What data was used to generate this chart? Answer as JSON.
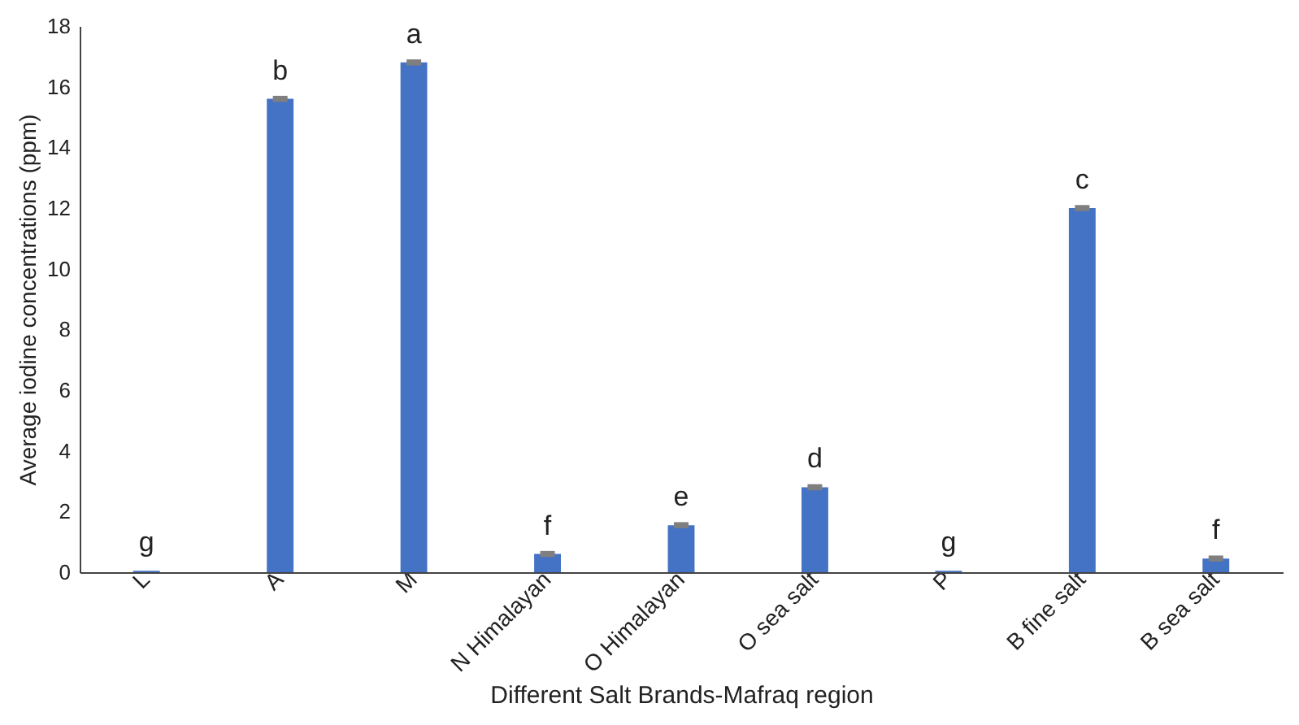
{
  "chart_data": {
    "type": "bar",
    "xlabel": "Different Salt Brands-Mafraq region",
    "ylabel": "Average iodine concentrations (ppm)",
    "categories": [
      "L",
      "A",
      "M",
      "N Himalayan",
      "O Himalayan",
      "O sea salt",
      "P",
      "B fine salt",
      "B sea salt"
    ],
    "values": [
      0.05,
      15.6,
      16.8,
      0.6,
      1.55,
      2.8,
      0.05,
      12.0,
      0.45
    ],
    "errors": [
      null,
      0.1,
      0.1,
      0.1,
      0.1,
      0.1,
      null,
      0.1,
      0.1
    ],
    "color": "#4472c4",
    "ylim": [
      0,
      18
    ],
    "yticks": [
      0,
      2,
      4,
      6,
      8,
      10,
      12,
      14,
      16,
      18
    ],
    "grid": false,
    "annotations": [
      {
        "text": "g",
        "x": "L",
        "y": 0.05
      },
      {
        "text": "b",
        "x": "A",
        "y": 15.6
      },
      {
        "text": "a",
        "x": "M",
        "y": 16.8
      },
      {
        "text": "f",
        "x": "N Himalayan",
        "y": 0.6
      },
      {
        "text": "e",
        "x": "O Himalayan",
        "y": 1.55
      },
      {
        "text": "d",
        "x": "O sea salt",
        "y": 2.8
      },
      {
        "text": "g",
        "x": "P",
        "y": 0.05
      },
      {
        "text": "c",
        "x": "B fine salt",
        "y": 12.0
      },
      {
        "text": "f",
        "x": "B sea salt",
        "y": 0.45
      }
    ]
  }
}
